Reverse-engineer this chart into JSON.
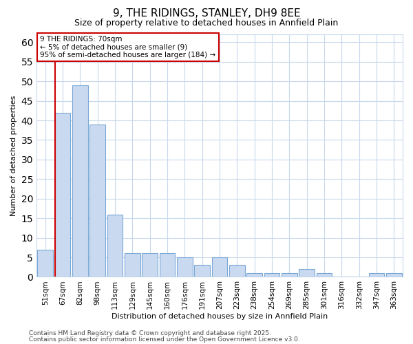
{
  "title1": "9, THE RIDINGS, STANLEY, DH9 8EE",
  "title2": "Size of property relative to detached houses in Annfield Plain",
  "xlabel": "Distribution of detached houses by size in Annfield Plain",
  "ylabel": "Number of detached properties",
  "categories": [
    "51sqm",
    "67sqm",
    "82sqm",
    "98sqm",
    "113sqm",
    "129sqm",
    "145sqm",
    "160sqm",
    "176sqm",
    "191sqm",
    "207sqm",
    "223sqm",
    "238sqm",
    "254sqm",
    "269sqm",
    "285sqm",
    "301sqm",
    "316sqm",
    "332sqm",
    "347sqm",
    "363sqm"
  ],
  "values": [
    7,
    42,
    49,
    39,
    16,
    6,
    6,
    6,
    5,
    3,
    5,
    3,
    1,
    1,
    1,
    2,
    1,
    0,
    0,
    1,
    1
  ],
  "bar_color": "#c9d9f0",
  "bar_edge_color": "#7aa8d8",
  "red_line_x": 1.5,
  "highlight_edge_color": "#cc0000",
  "ylim": [
    0,
    62
  ],
  "yticks": [
    0,
    5,
    10,
    15,
    20,
    25,
    30,
    35,
    40,
    45,
    50,
    55,
    60
  ],
  "annotation_text": "9 THE RIDINGS: 70sqm\n← 5% of detached houses are smaller (9)\n95% of semi-detached houses are larger (184) →",
  "annotation_box_color": "#ffffff",
  "annotation_box_edge": "#cc0000",
  "bg_color": "#ffffff",
  "plot_bg_color": "#ffffff",
  "grid_color": "#c8d8ec",
  "footer1": "Contains HM Land Registry data © Crown copyright and database right 2025.",
  "footer2": "Contains public sector information licensed under the Open Government Licence v3.0.",
  "title1_fontsize": 11,
  "title2_fontsize": 9,
  "xlabel_fontsize": 8,
  "ylabel_fontsize": 8,
  "tick_fontsize": 7.5,
  "footer_fontsize": 6.5
}
